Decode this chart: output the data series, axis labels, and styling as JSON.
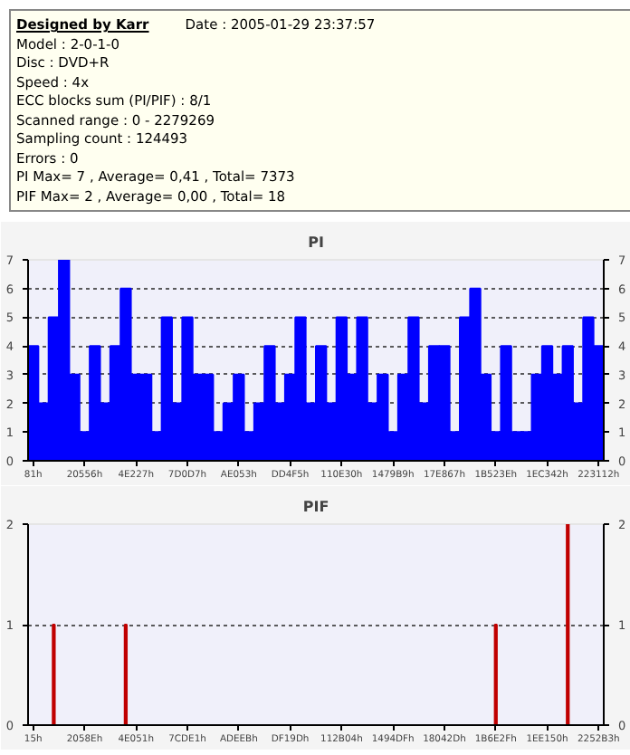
{
  "chart_data": [
    {
      "type": "bar",
      "title": "PI",
      "annotations": [
        "Designed by Karr",
        "Date : 2005-01-29 23:37:57",
        "Model : 2-0-1-0",
        "Disc : DVD+R",
        "Speed : 4x",
        "ECC blocks sum (PI/PIF) : 8/1",
        "Scanned range : 0 - 2279269",
        "Sampling count : 124493",
        "Errors : 0",
        "PI Max= 7 , Average= 0,41 , Total= 7373",
        "PIF Max= 2 , Average= 0,00 , Total= 18"
      ],
      "categories": [
        "81h",
        null,
        null,
        null,
        null,
        "20556h",
        null,
        null,
        null,
        null,
        "4E227h",
        null,
        null,
        null,
        null,
        "7D0D7h",
        null,
        null,
        null,
        null,
        "AE053h",
        null,
        null,
        null,
        null,
        "DD4F5h",
        null,
        null,
        null,
        null,
        "110E30h",
        null,
        null,
        null,
        null,
        "1479B9h",
        null,
        null,
        null,
        null,
        "17E867h",
        null,
        null,
        null,
        null,
        "1B523Eh",
        null,
        null,
        null,
        null,
        "1EC342h",
        null,
        null,
        null,
        null,
        "223112h"
      ],
      "values": [
        4,
        2,
        5,
        7,
        3,
        1,
        4,
        2,
        4,
        6,
        3,
        3,
        1,
        5,
        2,
        5,
        3,
        3,
        1,
        2,
        3,
        1,
        2,
        4,
        2,
        3,
        5,
        2,
        4,
        2,
        5,
        3,
        5,
        2,
        3,
        1,
        3,
        5,
        2,
        4,
        4,
        1,
        5,
        6,
        3,
        1,
        4,
        1,
        1,
        3,
        4,
        3,
        4,
        2,
        5,
        4
      ],
      "color": "#0000ff",
      "ylim": [
        0,
        7
      ],
      "yticks": [
        0,
        1,
        2,
        3,
        4,
        5,
        6,
        7
      ],
      "y2lim": [
        0,
        7
      ],
      "y2ticks": [
        0,
        1,
        2,
        3,
        4,
        5,
        6,
        7
      ],
      "grid": "y"
    },
    {
      "type": "bar",
      "title": "PIF",
      "categories": [
        "15h",
        null,
        null,
        null,
        null,
        "2058Eh",
        null,
        null,
        null,
        null,
        "4E051h",
        null,
        null,
        null,
        null,
        "7CDE1h",
        null,
        null,
        null,
        null,
        "ADEEBh",
        null,
        null,
        null,
        null,
        "DF19Dh",
        null,
        null,
        null,
        null,
        "112B04h",
        null,
        null,
        null,
        null,
        "1494DFh",
        null,
        null,
        null,
        null,
        "18042Dh",
        null,
        null,
        null,
        null,
        "1B6E2Fh",
        null,
        null,
        null,
        null,
        "1EE150h",
        null,
        null,
        null,
        null,
        "2252B3h"
      ],
      "values": [
        0,
        0,
        1,
        0,
        0,
        0,
        0,
        0,
        0,
        1,
        0,
        0,
        0,
        0,
        0,
        0,
        0,
        0,
        0,
        0,
        0,
        0,
        0,
        0,
        0,
        0,
        0,
        0,
        0,
        0,
        0,
        0,
        0,
        0,
        0,
        0,
        0,
        0,
        0,
        0,
        0,
        0,
        0,
        0,
        0,
        1,
        0,
        0,
        0,
        0,
        0,
        0,
        2,
        0,
        0,
        0
      ],
      "color": "#c00000",
      "ylim": [
        0,
        2
      ],
      "yticks": [
        0,
        1,
        2
      ],
      "y2lim": [
        0,
        2
      ],
      "y2ticks": [
        0,
        1,
        2
      ],
      "grid": "y"
    }
  ]
}
